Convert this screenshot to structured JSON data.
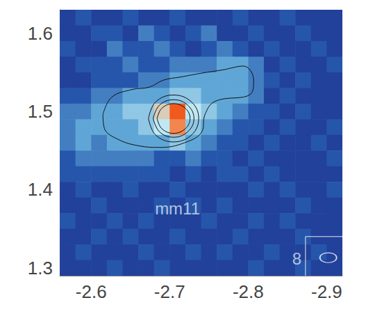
{
  "chart_data": {
    "type": "heatmap",
    "xlim": [
      -2.56,
      -2.92
    ],
    "ylim": [
      1.29,
      1.63
    ],
    "xticks": [
      -2.6,
      -2.7,
      -2.8,
      -2.9
    ],
    "yticks": [
      1.3,
      1.4,
      1.5,
      1.6
    ],
    "x_edges": [
      -2.56,
      -2.58,
      -2.6,
      -2.62,
      -2.64,
      -2.66,
      -2.68,
      -2.7,
      -2.72,
      -2.74,
      -2.76,
      -2.78,
      -2.8,
      -2.82,
      -2.84,
      -2.86,
      -2.88,
      -2.9,
      -2.92
    ],
    "y_edges": [
      1.63,
      1.61,
      1.59,
      1.57,
      1.55,
      1.53,
      1.51,
      1.49,
      1.47,
      1.45,
      1.43,
      1.41,
      1.39,
      1.37,
      1.35,
      1.33,
      1.31,
      1.29
    ],
    "cells": [
      [
        1,
        2,
        1,
        1,
        2,
        1,
        1,
        2,
        1,
        1,
        1,
        2,
        1,
        1,
        2,
        1,
        1,
        1
      ],
      [
        1,
        1,
        2,
        2,
        1,
        3,
        2,
        1,
        2,
        3,
        1,
        1,
        2,
        1,
        1,
        2,
        1,
        1
      ],
      [
        2,
        1,
        1,
        3,
        2,
        2,
        3,
        2,
        1,
        2,
        3,
        2,
        1,
        2,
        1,
        1,
        2,
        1
      ],
      [
        1,
        2,
        2,
        2,
        3,
        2,
        2,
        3,
        3,
        3,
        4,
        4,
        3,
        1,
        2,
        1,
        1,
        2
      ],
      [
        1,
        1,
        2,
        2,
        2,
        3,
        3,
        4,
        4,
        4,
        4,
        4,
        3,
        2,
        1,
        2,
        1,
        1
      ],
      [
        2,
        2,
        3,
        3,
        4,
        4,
        4,
        5,
        5,
        4,
        4,
        4,
        3,
        1,
        2,
        1,
        1,
        1
      ],
      [
        3,
        3,
        4,
        4,
        5,
        5,
        7,
        10,
        6,
        5,
        4,
        3,
        2,
        2,
        1,
        2,
        1,
        1
      ],
      [
        3,
        4,
        4,
        4,
        4,
        5,
        6,
        9,
        5,
        4,
        3,
        2,
        2,
        1,
        2,
        1,
        1,
        2
      ],
      [
        3,
        4,
        3,
        4,
        4,
        4,
        4,
        5,
        4,
        3,
        2,
        2,
        1,
        2,
        1,
        1,
        2,
        1
      ],
      [
        2,
        3,
        3,
        3,
        3,
        3,
        2,
        2,
        3,
        2,
        2,
        1,
        2,
        1,
        1,
        1,
        1,
        2
      ],
      [
        2,
        2,
        2,
        2,
        2,
        2,
        2,
        1,
        2,
        1,
        2,
        2,
        1,
        2,
        1,
        1,
        1,
        1
      ],
      [
        1,
        2,
        1,
        1,
        2,
        1,
        1,
        2,
        1,
        1,
        1,
        1,
        2,
        1,
        2,
        1,
        1,
        2
      ],
      [
        1,
        1,
        2,
        1,
        1,
        1,
        2,
        1,
        2,
        1,
        2,
        1,
        1,
        1,
        1,
        2,
        1,
        1
      ],
      [
        2,
        1,
        1,
        2,
        1,
        2,
        1,
        1,
        1,
        2,
        1,
        1,
        2,
        1,
        2,
        1,
        1,
        1
      ],
      [
        1,
        1,
        2,
        1,
        2,
        1,
        1,
        2,
        1,
        1,
        1,
        2,
        1,
        1,
        1,
        2,
        1,
        1
      ],
      [
        1,
        2,
        1,
        1,
        1,
        2,
        1,
        1,
        2,
        1,
        2,
        1,
        1,
        2,
        1,
        1,
        2,
        1
      ],
      [
        1,
        1,
        1,
        2,
        1,
        1,
        2,
        1,
        1,
        1,
        1,
        1,
        2,
        1,
        1,
        2,
        1,
        1
      ]
    ],
    "color_range": [
      0,
      10
    ],
    "contours": [
      [
        [
          -2.615,
          1.496
        ],
        [
          -2.626,
          1.518
        ],
        [
          -2.652,
          1.528
        ],
        [
          -2.674,
          1.531
        ],
        [
          -2.692,
          1.54
        ],
        [
          -2.714,
          1.544
        ],
        [
          -2.741,
          1.549
        ],
        [
          -2.767,
          1.553
        ],
        [
          -2.794,
          1.558
        ],
        [
          -2.807,
          1.54
        ],
        [
          -2.803,
          1.522
        ],
        [
          -2.758,
          1.513
        ],
        [
          -2.745,
          1.496
        ],
        [
          -2.741,
          1.474
        ],
        [
          -2.719,
          1.46
        ],
        [
          -2.688,
          1.454
        ],
        [
          -2.661,
          1.456
        ],
        [
          -2.635,
          1.464
        ],
        [
          -2.617,
          1.478
        ],
        [
          -2.615,
          1.496
        ]
      ],
      [
        [
          -2.673,
          1.491
        ],
        [
          -2.682,
          1.512
        ],
        [
          -2.705,
          1.521
        ],
        [
          -2.728,
          1.512
        ],
        [
          -2.737,
          1.491
        ],
        [
          -2.728,
          1.47
        ],
        [
          -2.705,
          1.461
        ],
        [
          -2.682,
          1.47
        ],
        [
          -2.673,
          1.491
        ]
      ],
      [
        [
          -2.679,
          1.491
        ],
        [
          -2.687,
          1.508
        ],
        [
          -2.705,
          1.515
        ],
        [
          -2.723,
          1.508
        ],
        [
          -2.731,
          1.491
        ],
        [
          -2.723,
          1.474
        ],
        [
          -2.705,
          1.467
        ],
        [
          -2.687,
          1.474
        ],
        [
          -2.679,
          1.491
        ]
      ],
      [
        [
          -2.684,
          1.491
        ],
        [
          -2.69,
          1.504
        ],
        [
          -2.705,
          1.51
        ],
        [
          -2.72,
          1.504
        ],
        [
          -2.726,
          1.491
        ],
        [
          -2.72,
          1.478
        ],
        [
          -2.705,
          1.472
        ],
        [
          -2.69,
          1.478
        ],
        [
          -2.684,
          1.491
        ]
      ]
    ],
    "annotations": [
      {
        "text": "mm11",
        "x": -2.71,
        "y": 1.376
      },
      {
        "text": "8",
        "x": -2.862,
        "y": 1.312
      }
    ],
    "beam": {
      "x": -2.902,
      "y": 1.313
    },
    "beam_box": [
      [
        -2.873,
        1.29
      ],
      [
        -2.873,
        1.34
      ],
      [
        -2.92,
        1.34
      ]
    ]
  }
}
